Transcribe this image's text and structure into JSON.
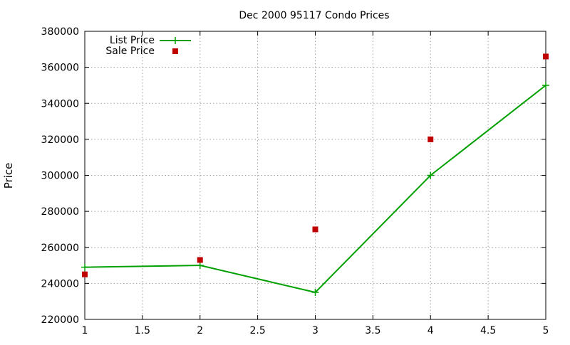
{
  "chart_data": {
    "type": "line",
    "title": "Dec 2000 95117 Condo Prices",
    "xlabel": "",
    "ylabel": "Price",
    "xlim": [
      1,
      5
    ],
    "ylim": [
      220000,
      380000
    ],
    "x_ticks": [
      1,
      1.5,
      2,
      2.5,
      3,
      3.5,
      4,
      4.5,
      5
    ],
    "x_tick_labels": [
      "1",
      "1.5",
      "2",
      "2.5",
      "3",
      "3.5",
      "4",
      "4.5",
      "5"
    ],
    "y_ticks": [
      220000,
      240000,
      260000,
      280000,
      300000,
      320000,
      340000,
      360000,
      380000
    ],
    "y_tick_labels": [
      "220000",
      "240000",
      "260000",
      "280000",
      "300000",
      "320000",
      "340000",
      "360000",
      "380000"
    ],
    "grid": true,
    "legend_position": "top-left",
    "series": [
      {
        "name": "List Price",
        "style": "linespoints",
        "marker": "plus",
        "color": "#00a000",
        "x": [
          1,
          2,
          3,
          4,
          5
        ],
        "y": [
          249000,
          250000,
          235000,
          300000,
          350000
        ]
      },
      {
        "name": "Sale Price",
        "style": "points",
        "marker": "square",
        "color": "#c00000",
        "x": [
          1,
          2,
          3,
          4,
          5
        ],
        "y": [
          245000,
          253000,
          270000,
          320000,
          366000
        ]
      }
    ]
  }
}
